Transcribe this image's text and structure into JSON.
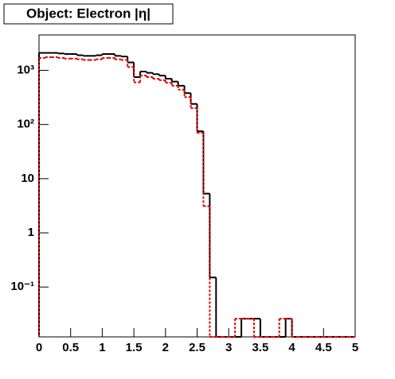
{
  "chart_data": {
    "type": "histogram",
    "title": "Object: Electron |η|",
    "bins": [
      0,
      0.1,
      0.2,
      0.3,
      0.4,
      0.5,
      0.6,
      0.7,
      0.8,
      0.9,
      1,
      1.1,
      1.2,
      1.3,
      1.4,
      1.5,
      1.6,
      1.7,
      1.8,
      1.9,
      2,
      2.1,
      2.2,
      2.3,
      2.4,
      2.5,
      2.6,
      2.7,
      2.8,
      2.9,
      3,
      3.1,
      3.2,
      3.3,
      3.4,
      3.5,
      3.6,
      3.7,
      3.8,
      3.9,
      4,
      4.1,
      4.2,
      4.3,
      4.4,
      4.5,
      4.6,
      4.7,
      4.8,
      4.9,
      5
    ],
    "series": [
      {
        "color": "#000000",
        "dashed": false,
        "values": [
          2100,
          2100,
          2100,
          2050,
          2000,
          2000,
          1900,
          1850,
          1850,
          1900,
          2000,
          2000,
          1850,
          1800,
          1400,
          750,
          950,
          900,
          850,
          800,
          700,
          620,
          520,
          380,
          240,
          75,
          5.3,
          0.15,
          0,
          0,
          0,
          0,
          0.026,
          0.026,
          0.026,
          0,
          0,
          0,
          0,
          0.026,
          0,
          0,
          0,
          0,
          0,
          0,
          0,
          0,
          0,
          0
        ]
      },
      {
        "color": "#e00000",
        "dashed": true,
        "values": [
          1700,
          1750,
          1750,
          1700,
          1650,
          1650,
          1600,
          1550,
          1550,
          1600,
          1700,
          1700,
          1600,
          1550,
          1150,
          600,
          800,
          750,
          700,
          660,
          590,
          520,
          440,
          320,
          200,
          70,
          3.1,
          0,
          0,
          0,
          0,
          0.026,
          0.026,
          0.026,
          0,
          0,
          0,
          0,
          0.026,
          0.026,
          0,
          0,
          0,
          0,
          0,
          0,
          0,
          0,
          0,
          0
        ]
      }
    ],
    "xlim": [
      0,
      5
    ],
    "xticks": [
      0,
      0.5,
      1,
      1.5,
      2,
      2.5,
      3,
      3.5,
      4,
      4.5,
      5
    ],
    "ylim": [
      0.012,
      4500
    ],
    "log_y": true,
    "yticks": [
      {
        "value": 0.1,
        "label": "10⁻¹"
      },
      1,
      10,
      {
        "value": 100,
        "label": "10²"
      },
      {
        "value": 1000,
        "label": "10³"
      }
    ]
  }
}
